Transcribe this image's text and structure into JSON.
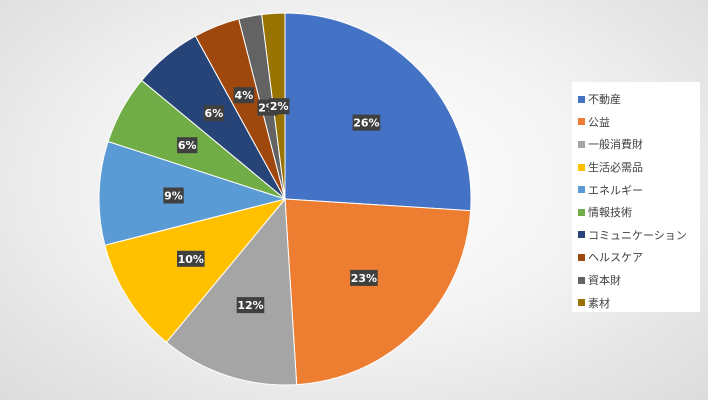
{
  "chart_data": {
    "type": "pie",
    "title": "",
    "categories": [
      "不動産",
      "公益",
      "一般消費財",
      "生活必需品",
      "エネルギー",
      "情報技術",
      "コミュニケーション",
      "ヘルスケア",
      "資本財",
      "素材"
    ],
    "values": [
      26,
      23,
      12,
      10,
      9,
      6,
      6,
      4,
      2,
      2
    ],
    "data_labels": [
      "26%",
      "23%",
      "12%",
      "10%",
      "9%",
      "6%",
      "6%",
      "4%",
      "2%",
      "2%"
    ],
    "colors": [
      "#4472C4",
      "#ED7D31",
      "#A5A5A5",
      "#FFC000",
      "#5B9BD5",
      "#70AD47",
      "#264478",
      "#9E480E",
      "#636363",
      "#997300"
    ],
    "start_angle": "12 o'clock",
    "direction": "clockwise",
    "legend_position": "right"
  }
}
